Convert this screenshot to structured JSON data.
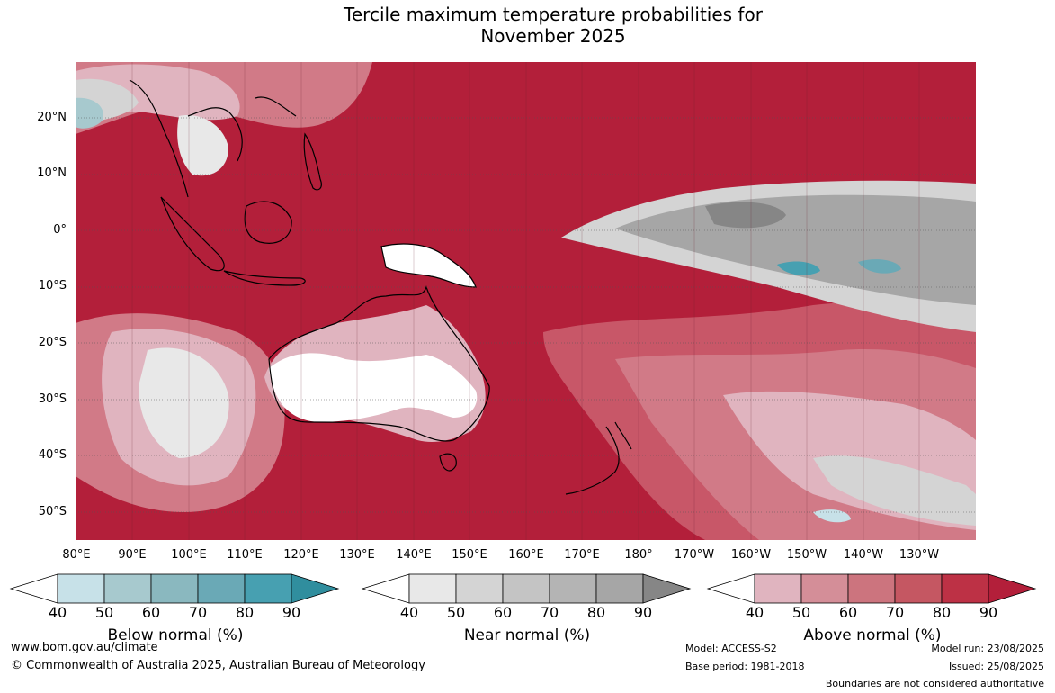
{
  "title": {
    "line1": "Tercile maximum temperature probabilities for",
    "line2": "November 2025"
  },
  "map": {
    "region": "Australia and Western Pacific",
    "lat_labels": [
      "20°N",
      "10°N",
      "0°",
      "10°S",
      "20°S",
      "30°S",
      "40°S",
      "50°S"
    ],
    "lon_labels": [
      "80°E",
      "90°E",
      "100°E",
      "110°E",
      "120°E",
      "130°E",
      "140°E",
      "150°E",
      "160°E",
      "170°E",
      "180°",
      "170°W",
      "160°W",
      "150°W",
      "140°W",
      "130°W"
    ],
    "colors": {
      "above_90": "#b31f3a",
      "above_80": "#be3a50",
      "above_70": "#c85768",
      "above_60": "#d17a87",
      "above_50": "#e0b4bf",
      "near": "#a6a6a6",
      "near_light": "#d4d4d4",
      "below": "#47a0b1",
      "below_light": "#c7e1e8",
      "land_white": "#ffffff"
    }
  },
  "legends": [
    {
      "title": "Below normal (%)",
      "ticks": [
        "40",
        "50",
        "60",
        "70",
        "80",
        "90"
      ],
      "colors": [
        "#ffffff",
        "#c7e1e8",
        "#a7c9ce",
        "#8ab8bf",
        "#6aa9b6",
        "#47a0b1",
        "#308e9e"
      ]
    },
    {
      "title": "Near normal (%)",
      "ticks": [
        "40",
        "50",
        "60",
        "70",
        "80",
        "90"
      ],
      "colors": [
        "#ffffff",
        "#e8e8e8",
        "#d4d4d4",
        "#c4c4c4",
        "#b4b4b4",
        "#a6a6a6",
        "#868686"
      ]
    },
    {
      "title": "Above normal (%)",
      "ticks": [
        "40",
        "50",
        "60",
        "70",
        "80",
        "90"
      ],
      "colors": [
        "#ffffff",
        "#e0b4bf",
        "#d48e98",
        "#cc747e",
        "#c55762",
        "#bd3145",
        "#b31f3a"
      ]
    }
  ],
  "footer": {
    "url": "www.bom.gov.au/climate",
    "copyright": "© Commonwealth of Australia 2025, Australian Bureau of Meteorology",
    "model": "Model: ACCESS-S2",
    "base_period": "Base period: 1981-2018",
    "model_run": "Model run: 23/08/2025",
    "issued": "Issued: 25/08/2025",
    "disclaimer": "Boundaries are not considered authoritative"
  }
}
